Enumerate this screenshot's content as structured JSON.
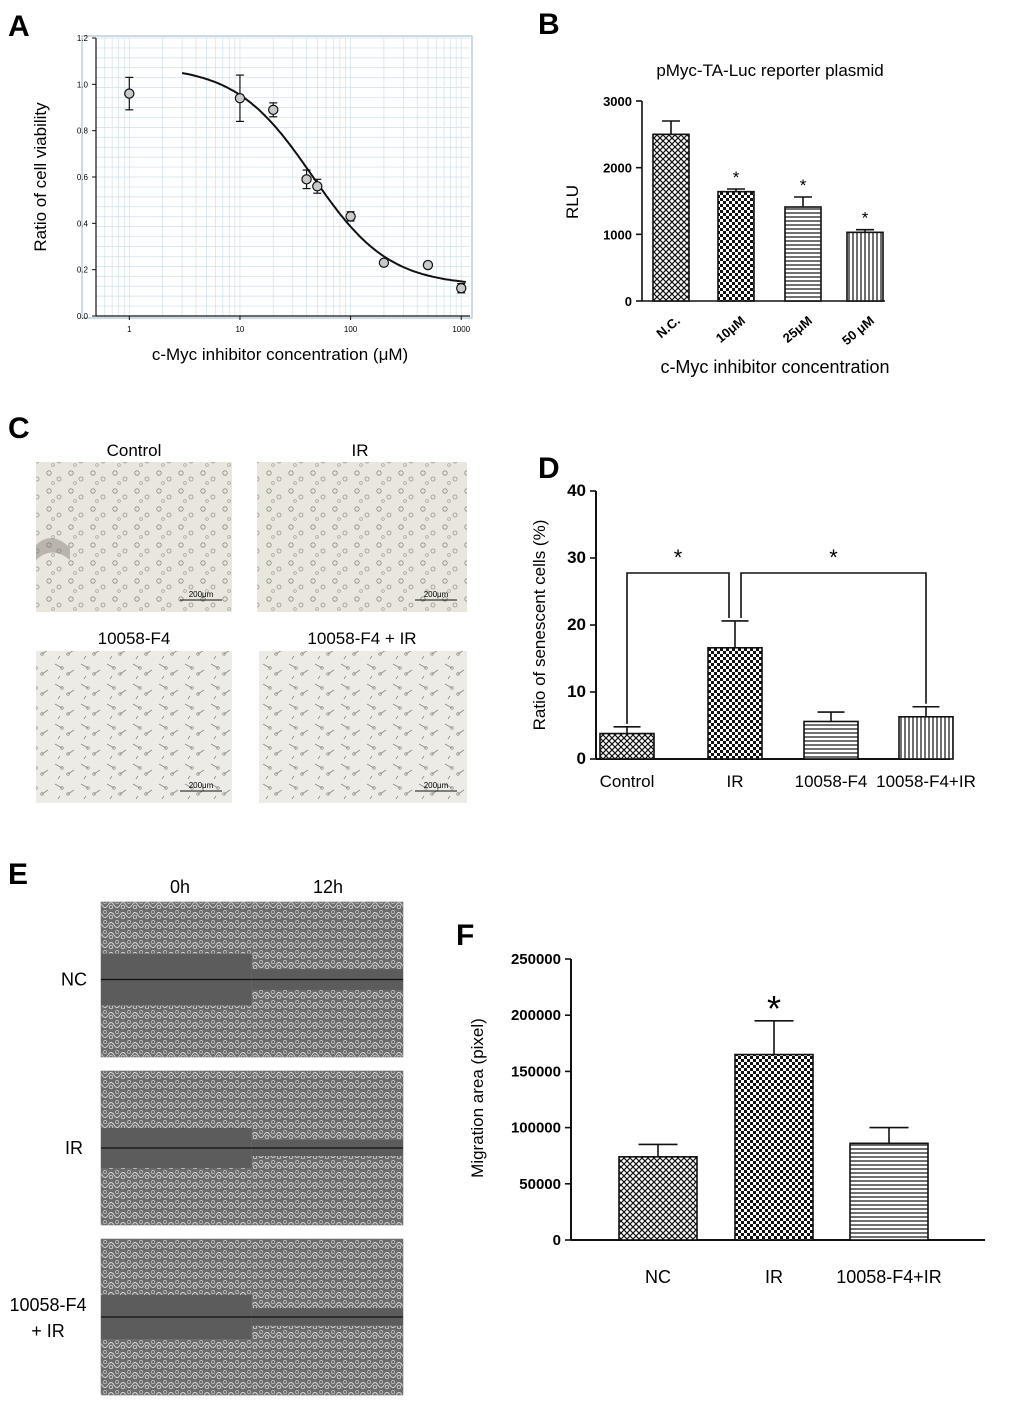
{
  "colors": {
    "ink": "#111111",
    "frame": "#9fb7c9",
    "grid": "#cfe0ea",
    "micrograph_bg": "#e9e6dd",
    "scratch_bg": "#5c5c5c"
  },
  "panels": {
    "A": {
      "letter": "A",
      "xlabel": "c-Myc inhibitor concentration (μM)",
      "ylabel": "Ratio of cell viability",
      "xticks": [
        "1",
        "10",
        "100",
        "1000"
      ],
      "yticks": [
        "0.0",
        "0.2",
        "0.4",
        "0.6",
        "0.8",
        "1.0",
        "1.2"
      ]
    },
    "B": {
      "letter": "B",
      "title": "pMyc-TA-Luc reporter plasmid",
      "xlabel": "c-Myc inhibitor concentration",
      "ylabel": "RLU",
      "yticks": [
        "0",
        "1000",
        "2000",
        "3000"
      ]
    },
    "C": {
      "letter": "C",
      "images": [
        {
          "label": "Control",
          "scale": "200μm"
        },
        {
          "label": "IR",
          "scale": "200μm"
        },
        {
          "label": "10058-F4",
          "scale": "200μm"
        },
        {
          "label": "10058-F4 + IR",
          "scale": "200μm"
        }
      ]
    },
    "D": {
      "letter": "D",
      "ylabel": "Ratio of senescent cells (%)",
      "yticks": [
        "0",
        "10",
        "20",
        "30",
        "40"
      ],
      "sig": [
        "*",
        "*"
      ]
    },
    "E": {
      "letter": "E",
      "col_labels": [
        "0h",
        "12h"
      ],
      "row_labels": [
        "NC",
        "IR",
        "10058-F4\n+ IR"
      ]
    },
    "F": {
      "letter": "F",
      "ylabel": "Migration area (pixel)",
      "yticks": [
        "0",
        "50000",
        "100000",
        "150000",
        "200000",
        "250000"
      ]
    }
  },
  "chart_data": [
    {
      "panel": "A",
      "type": "scatter",
      "xscale": "log",
      "xlim": [
        0.5,
        1200
      ],
      "ylim": [
        0,
        1.2
      ],
      "xlabel": "c-Myc inhibitor concentration (μM)",
      "ylabel": "Ratio of cell viability",
      "grid": true,
      "points": [
        {
          "x": 1,
          "y": 0.96,
          "err": 0.07
        },
        {
          "x": 10,
          "y": 0.94,
          "err": 0.1
        },
        {
          "x": 20,
          "y": 0.89,
          "err": 0.03
        },
        {
          "x": 40,
          "y": 0.59,
          "err": 0.04
        },
        {
          "x": 50,
          "y": 0.56,
          "err": 0.03
        },
        {
          "x": 100,
          "y": 0.43,
          "err": 0.02
        },
        {
          "x": 200,
          "y": 0.23,
          "err": 0.01
        },
        {
          "x": 500,
          "y": 0.22,
          "err": 0.01
        },
        {
          "x": 1000,
          "y": 0.12,
          "err": 0.02
        }
      ],
      "fit": {
        "type": "sigmoid",
        "top": 1.08,
        "bottom": 0.13,
        "ic50": 45,
        "hill": 1.25,
        "x_range": [
          3,
          1100
        ]
      }
    },
    {
      "panel": "B",
      "type": "bar",
      "title": "pMyc-TA-Luc reporter plasmid",
      "categories": [
        "N.C.",
        "10μM",
        "25μM",
        "50 μM"
      ],
      "values": [
        2500,
        1640,
        1410,
        1030
      ],
      "errors": [
        200,
        40,
        150,
        40
      ],
      "significance": [
        "",
        "*",
        "*",
        "*"
      ],
      "patterns": [
        "crosshatch",
        "checker",
        "horizontal",
        "vertical"
      ],
      "ylim": [
        0,
        3000
      ],
      "xlabel": "c-Myc inhibitor concentration",
      "ylabel": "RLU"
    },
    {
      "panel": "D",
      "type": "bar",
      "categories": [
        "Control",
        "IR",
        "10058-F4",
        "10058-F4+IR"
      ],
      "values": [
        3.8,
        16.6,
        5.6,
        6.3
      ],
      "errors": [
        1.0,
        4.0,
        1.4,
        1.5
      ],
      "patterns": [
        "crosshatch",
        "checker",
        "horizontal",
        "vertical"
      ],
      "ylim": [
        0,
        40
      ],
      "ylabel": "Ratio of senescent cells (%)",
      "brackets": [
        {
          "from": 0,
          "to": 1,
          "label": "*"
        },
        {
          "from": 1,
          "to": 3,
          "label": "*"
        }
      ]
    },
    {
      "panel": "F",
      "type": "bar",
      "categories": [
        "NC",
        "IR",
        "10058-F4+IR"
      ],
      "values": [
        74000,
        165000,
        86000
      ],
      "errors": [
        11000,
        30000,
        14000
      ],
      "significance": [
        "",
        "*",
        ""
      ],
      "patterns": [
        "crosshatch",
        "checker",
        "horizontal"
      ],
      "ylim": [
        0,
        250000
      ],
      "ylabel": "Migration area (pixel)"
    }
  ]
}
